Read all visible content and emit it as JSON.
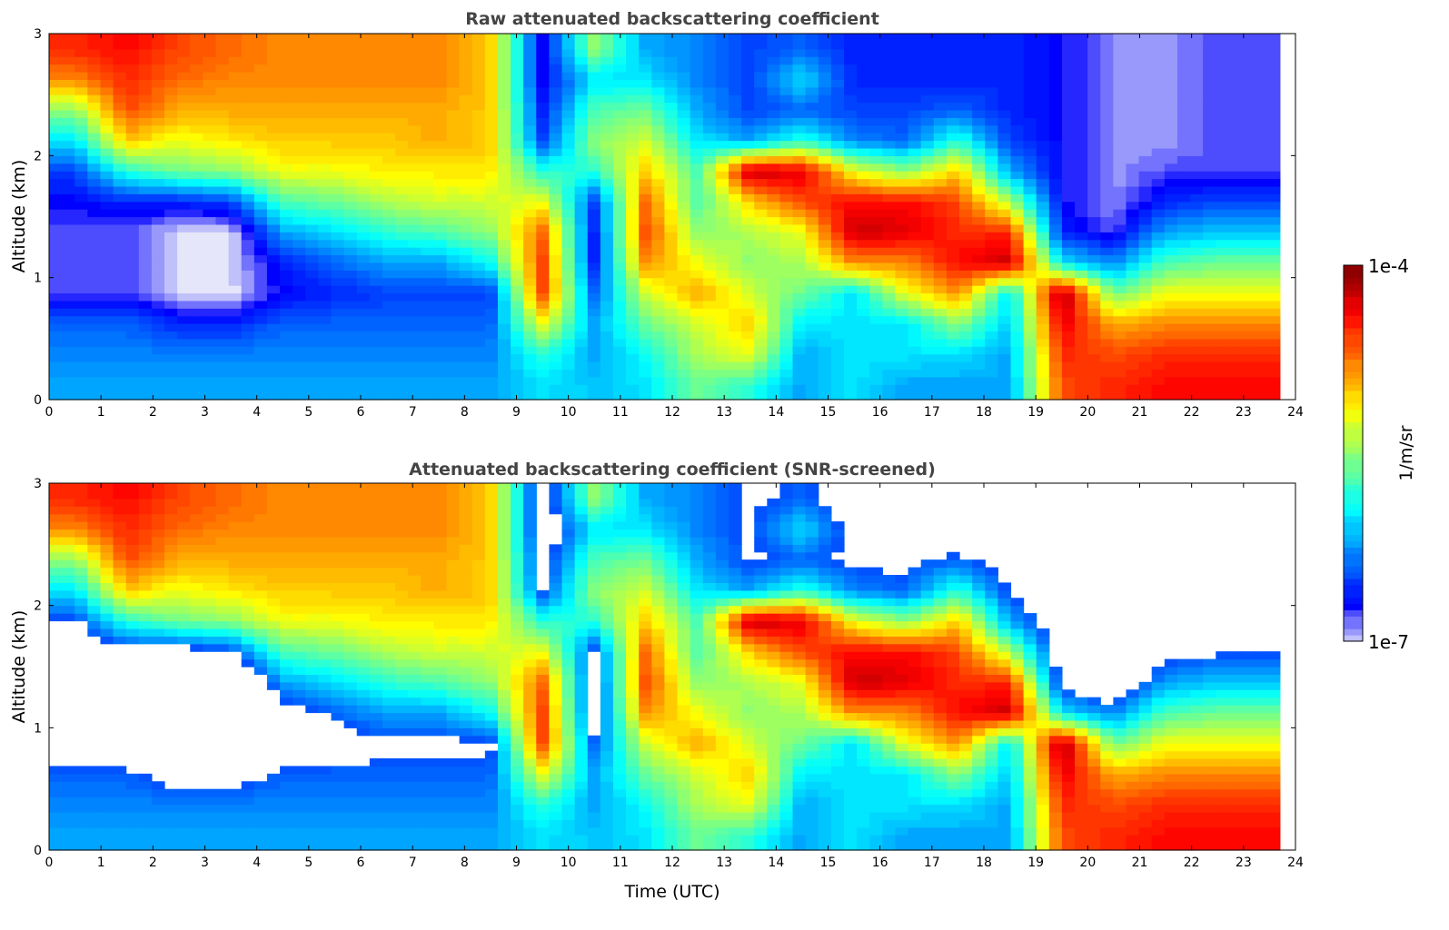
{
  "chart_data": [
    {
      "type": "heatmap",
      "title": "Raw attenuated backscattering coefficient",
      "xlabel": "",
      "ylabel": "Altitude (km)",
      "xlim": [
        0,
        24
      ],
      "ylim": [
        0,
        3
      ],
      "xticks": [
        "0",
        "1",
        "2",
        "3",
        "4",
        "5",
        "6",
        "7",
        "8",
        "9",
        "10",
        "11",
        "12",
        "13",
        "14",
        "15",
        "16",
        "17",
        "18",
        "19",
        "20",
        "21",
        "22",
        "23",
        "24"
      ],
      "yticks": [
        "0",
        "1",
        "2",
        "3"
      ],
      "data_time_end": 23.7,
      "time_centers_hours": [
        0.5,
        1.5,
        2.5,
        3.5,
        4.5,
        5.5,
        6.5,
        7.5,
        8.5,
        9.5,
        10.5,
        11.5,
        12.5,
        13.5,
        14.5,
        15.5,
        16.5,
        17.5,
        18.5,
        19.5,
        20.5,
        21.5,
        22.5,
        23.5
      ],
      "altitude_centers_km": [
        0.125,
        0.375,
        0.625,
        0.875,
        1.125,
        1.375,
        1.625,
        1.875,
        2.125,
        2.375,
        2.625,
        2.875
      ],
      "values_log10": [
        [
          -6.2,
          -6.3,
          -6.4,
          -6.8,
          -6.8,
          -6.8,
          -6.7,
          -6.5,
          -6.0,
          -5.5,
          -4.8,
          -4.5
        ],
        [
          -6.2,
          -6.3,
          -6.4,
          -6.8,
          -6.8,
          -6.8,
          -6.6,
          -5.8,
          -5.0,
          -4.6,
          -4.5,
          -4.4
        ],
        [
          -6.2,
          -6.3,
          -6.6,
          -7.0,
          -7.0,
          -7.0,
          -6.6,
          -5.6,
          -5.2,
          -4.9,
          -4.7,
          -4.6
        ],
        [
          -6.2,
          -6.3,
          -6.6,
          -7.0,
          -7.0,
          -7.0,
          -6.5,
          -5.5,
          -5.1,
          -4.9,
          -4.8,
          -4.7
        ],
        [
          -6.2,
          -6.3,
          -6.4,
          -6.7,
          -6.6,
          -6.2,
          -5.7,
          -5.2,
          -5.0,
          -4.9,
          -4.8,
          -4.8
        ],
        [
          -6.2,
          -6.3,
          -6.4,
          -6.6,
          -6.4,
          -6.0,
          -5.6,
          -5.2,
          -5.0,
          -4.9,
          -4.8,
          -4.8
        ],
        [
          -6.2,
          -6.3,
          -6.4,
          -6.5,
          -6.2,
          -5.8,
          -5.4,
          -5.1,
          -5.0,
          -4.9,
          -4.8,
          -4.8
        ],
        [
          -6.2,
          -6.3,
          -6.4,
          -6.5,
          -6.2,
          -5.7,
          -5.3,
          -5.1,
          -4.9,
          -4.9,
          -4.8,
          -4.8
        ],
        [
          -6.2,
          -6.3,
          -6.4,
          -6.5,
          -5.9,
          -5.5,
          -5.3,
          -5.1,
          -5.0,
          -5.0,
          -5.0,
          -5.0
        ],
        [
          -6.0,
          -5.8,
          -5.2,
          -4.6,
          -4.6,
          -4.7,
          -5.2,
          -5.8,
          -6.5,
          -6.6,
          -6.7,
          -6.7
        ],
        [
          -6.1,
          -6.2,
          -6.2,
          -6.4,
          -6.6,
          -6.6,
          -6.5,
          -5.8,
          -5.5,
          -5.7,
          -6.0,
          -5.5
        ],
        [
          -6.0,
          -5.9,
          -5.6,
          -5.3,
          -4.8,
          -4.6,
          -4.7,
          -5.0,
          -5.3,
          -5.6,
          -6.0,
          -6.2
        ],
        [
          -5.6,
          -5.4,
          -5.3,
          -4.9,
          -5.2,
          -5.5,
          -5.7,
          -5.7,
          -6.0,
          -6.2,
          -6.3,
          -6.3
        ],
        [
          -5.8,
          -5.2,
          -5.0,
          -5.3,
          -5.5,
          -5.4,
          -5.0,
          -4.2,
          -6.2,
          -6.5,
          -6.5,
          -6.5
        ],
        [
          -6.2,
          -6.2,
          -6.0,
          -5.6,
          -5.4,
          -5.2,
          -4.6,
          -4.3,
          -5.8,
          -6.4,
          -6.0,
          -6.4
        ],
        [
          -6.0,
          -6.0,
          -6.0,
          -6.0,
          -4.8,
          -4.2,
          -4.4,
          -5.2,
          -6.3,
          -6.5,
          -6.6,
          -6.6
        ],
        [
          -6.2,
          -6.0,
          -6.0,
          -5.2,
          -4.8,
          -4.3,
          -4.4,
          -5.5,
          -6.4,
          -6.5,
          -6.6,
          -6.6
        ],
        [
          -6.2,
          -6.0,
          -5.5,
          -4.8,
          -4.4,
          -4.5,
          -4.6,
          -5.0,
          -5.8,
          -6.4,
          -6.6,
          -6.6
        ],
        [
          -6.2,
          -6.2,
          -6.1,
          -6.0,
          -4.2,
          -4.5,
          -5.4,
          -6.2,
          -6.5,
          -6.6,
          -6.6,
          -6.6
        ],
        [
          -4.6,
          -4.5,
          -4.3,
          -4.1,
          -6.0,
          -6.6,
          -6.7,
          -6.7,
          -6.7,
          -6.7,
          -6.7,
          -6.7
        ],
        [
          -4.5,
          -4.6,
          -4.9,
          -5.6,
          -6.3,
          -6.8,
          -6.9,
          -6.9,
          -6.9,
          -6.9,
          -6.9,
          -6.9
        ],
        [
          -4.4,
          -4.5,
          -4.8,
          -5.2,
          -5.7,
          -6.2,
          -6.6,
          -6.8,
          -6.9,
          -6.9,
          -6.9,
          -6.9
        ],
        [
          -4.4,
          -4.5,
          -4.8,
          -5.2,
          -5.6,
          -6.1,
          -6.5,
          -6.8,
          -6.8,
          -6.8,
          -6.8,
          -6.8
        ],
        [
          -4.4,
          -4.5,
          -4.8,
          -5.2,
          -5.6,
          -6.1,
          -6.5,
          -6.8,
          -6.8,
          -6.8,
          -6.8,
          -6.8
        ]
      ]
    },
    {
      "type": "heatmap",
      "title": "Attenuated backscattering coefficient (SNR-screened)",
      "xlabel": "Time (UTC)",
      "ylabel": "Altitude (km)",
      "xlim": [
        0,
        24
      ],
      "ylim": [
        0,
        3
      ],
      "xticks": [
        "0",
        "1",
        "2",
        "3",
        "4",
        "5",
        "6",
        "7",
        "8",
        "9",
        "10",
        "11",
        "12",
        "13",
        "14",
        "15",
        "16",
        "17",
        "18",
        "19",
        "20",
        "21",
        "22",
        "23",
        "24"
      ],
      "yticks": [
        "0",
        "1",
        "2",
        "3"
      ],
      "derived_from": "raw panel values_log10",
      "snr_mask_below_log10": -6.45,
      "saturated_above_log10": -4.15,
      "saturated_color": "#000000"
    }
  ],
  "colorbar": {
    "label": "1/m/sr",
    "min_label": "1e-7",
    "max_label": "1e-4",
    "range_log10": [
      -7,
      -4
    ],
    "colormap": "jet (light lavender to blue at low end)"
  }
}
